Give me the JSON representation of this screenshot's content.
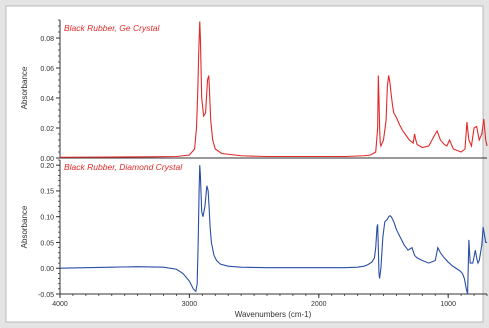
{
  "chart_data": [
    {
      "type": "line",
      "title": "Black Rubber, Ge Crystal",
      "ylabel": "Absorbance",
      "xlabel": "",
      "xlim": [
        4000,
        700
      ],
      "ylim": [
        0.0,
        0.092
      ],
      "yticks": [
        0.0,
        0.02,
        0.04,
        0.06,
        0.08
      ],
      "ytick_labels": [
        "0.00",
        "0.02",
        "0.04",
        "0.06",
        "0.08"
      ],
      "grid": false,
      "series_color": "#e02a2a",
      "series": [
        {
          "x": [
            4000,
            3600,
            3300,
            3100,
            3000,
            2960,
            2945,
            2935,
            2928,
            2920,
            2915,
            2905,
            2890,
            2875,
            2860,
            2850,
            2845,
            2835,
            2820,
            2800,
            2750,
            2600,
            2400,
            2200,
            2000,
            1800,
            1650,
            1600,
            1560,
            1545,
            1540,
            1535,
            1530,
            1525,
            1520,
            1500,
            1480,
            1470,
            1460,
            1450,
            1440,
            1430,
            1420,
            1400,
            1375,
            1350,
            1300,
            1270,
            1260,
            1250,
            1240,
            1200,
            1150,
            1100,
            1085,
            1060,
            1030,
            1010,
            990,
            960,
            900,
            870,
            855,
            840,
            820,
            800,
            780,
            760,
            740,
            725,
            710,
            700
          ],
          "y": [
            0.0005,
            0.0006,
            0.0008,
            0.001,
            0.002,
            0.006,
            0.02,
            0.045,
            0.07,
            0.091,
            0.08,
            0.04,
            0.028,
            0.03,
            0.052,
            0.055,
            0.045,
            0.025,
            0.012,
            0.006,
            0.003,
            0.0015,
            0.001,
            0.001,
            0.001,
            0.001,
            0.0015,
            0.002,
            0.004,
            0.02,
            0.055,
            0.04,
            0.02,
            0.01,
            0.008,
            0.012,
            0.025,
            0.048,
            0.055,
            0.05,
            0.042,
            0.035,
            0.03,
            0.027,
            0.022,
            0.018,
            0.012,
            0.01,
            0.016,
            0.012,
            0.009,
            0.007,
            0.008,
            0.016,
            0.018,
            0.012,
            0.009,
            0.008,
            0.012,
            0.006,
            0.004,
            0.006,
            0.024,
            0.012,
            0.008,
            0.02,
            0.021,
            0.012,
            0.016,
            0.026,
            0.012,
            0.008
          ]
        }
      ]
    },
    {
      "type": "line",
      "title": "Black Rubber, Diamond Crystal",
      "ylabel": "Absorbance",
      "xlabel": "Wavenumbers (cm-1)",
      "xlim": [
        4000,
        700
      ],
      "ylim": [
        -0.05,
        0.21
      ],
      "yticks": [
        -0.05,
        0.0,
        0.05,
        0.1,
        0.15,
        0.2
      ],
      "ytick_labels": [
        "-0.05",
        "0.00",
        "0.05",
        "0.10",
        "0.15",
        "0.20"
      ],
      "xticks": [
        4000,
        3000,
        2000,
        1000
      ],
      "xtick_labels": [
        "4000",
        "3000",
        "2000",
        "1000"
      ],
      "grid": false,
      "series_color": "#2a4ea6",
      "series": [
        {
          "x": [
            4000,
            3800,
            3600,
            3400,
            3200,
            3100,
            3050,
            3000,
            2970,
            2950,
            2940,
            2932,
            2925,
            2920,
            2915,
            2905,
            2895,
            2880,
            2865,
            2855,
            2848,
            2840,
            2830,
            2810,
            2790,
            2760,
            2700,
            2600,
            2400,
            2200,
            2000,
            1800,
            1700,
            1650,
            1620,
            1590,
            1570,
            1560,
            1550,
            1545,
            1540,
            1535,
            1530,
            1520,
            1505,
            1490,
            1470,
            1460,
            1450,
            1440,
            1430,
            1420,
            1400,
            1380,
            1360,
            1340,
            1310,
            1280,
            1260,
            1240,
            1200,
            1150,
            1100,
            1080,
            1060,
            1030,
            1000,
            970,
            940,
            910,
            890,
            875,
            860,
            850,
            840,
            830,
            810,
            790,
            780,
            770,
            760,
            750,
            740,
            730,
            720,
            710,
            700
          ],
          "y": [
            0.0,
            0.001,
            0.002,
            0.003,
            0.002,
            -0.002,
            -0.01,
            -0.025,
            -0.04,
            -0.045,
            -0.03,
            0.05,
            0.15,
            0.2,
            0.18,
            0.11,
            0.1,
            0.12,
            0.16,
            0.15,
            0.12,
            0.08,
            0.05,
            0.025,
            0.015,
            0.008,
            0.004,
            0.002,
            0.001,
            0.001,
            0.001,
            0.001,
            0.002,
            0.004,
            0.007,
            0.012,
            0.02,
            0.04,
            0.08,
            0.085,
            0.04,
            -0.01,
            -0.02,
            0.0,
            0.06,
            0.09,
            0.095,
            0.1,
            0.102,
            0.1,
            0.095,
            0.09,
            0.075,
            0.065,
            0.055,
            0.045,
            0.035,
            0.04,
            0.025,
            0.02,
            0.015,
            0.01,
            0.015,
            0.04,
            0.03,
            0.02,
            0.012,
            0.005,
            0.0,
            -0.005,
            -0.01,
            -0.02,
            -0.04,
            -0.05,
            0.055,
            0.01,
            0.01,
            0.035,
            0.02,
            0.01,
            0.015,
            0.03,
            0.045,
            0.08,
            0.065,
            0.05,
            0.05
          ]
        }
      ]
    }
  ]
}
